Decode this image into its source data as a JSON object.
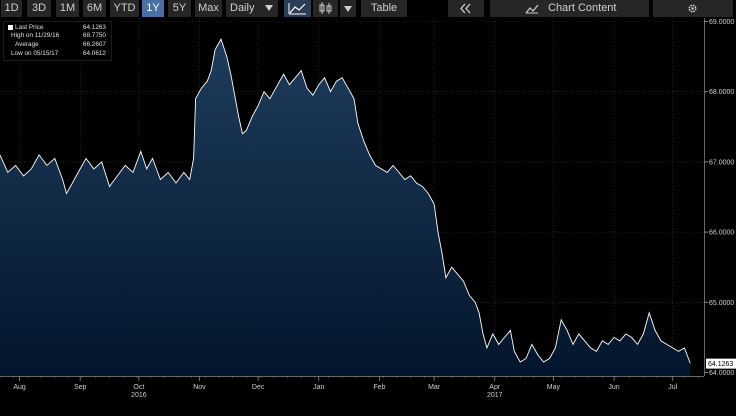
{
  "toolbar": {
    "ranges": [
      "1D",
      "3D",
      "1M",
      "6M",
      "YTD",
      "1Y",
      "5Y",
      "Max"
    ],
    "active_range": "1Y",
    "interval": "Daily",
    "table_label": "Table",
    "chart_content_label": "Chart Content"
  },
  "legend": {
    "last_label": "Last Price",
    "last_value": "64.1263",
    "high_label": "High on 11/29/16",
    "high_value": "68.7750",
    "avg_label": "Average",
    "avg_value": "66.2607",
    "low_label": "Low on 05/15/17",
    "low_value": "64.0612"
  },
  "chart_data": {
    "type": "area",
    "ylim": [
      63.95,
      69.05
    ],
    "yticks": [
      "69.0000",
      "68.0000",
      "67.0000",
      "66.0000",
      "65.0000",
      "64.0000"
    ],
    "ytick_values": [
      69,
      68,
      67,
      66,
      65,
      64
    ],
    "last_value_label": "64.1263",
    "last_value": 64.1263,
    "xticks": [
      {
        "label": "Aug",
        "day": 10
      },
      {
        "label": "Sep",
        "day": 41
      },
      {
        "label": "Oct",
        "day": 71
      },
      {
        "label": "Nov",
        "day": 102
      },
      {
        "label": "Dec",
        "day": 132
      },
      {
        "label": "Jan",
        "day": 163
      },
      {
        "label": "Feb",
        "day": 194
      },
      {
        "label": "Mar",
        "day": 222
      },
      {
        "label": "Apr",
        "day": 253
      },
      {
        "label": "May",
        "day": 283
      },
      {
        "label": "Jun",
        "day": 314
      },
      {
        "label": "Jul",
        "day": 344
      }
    ],
    "year_labels": [
      {
        "label": "2016",
        "day": 71
      },
      {
        "label": "2017",
        "day": 253
      }
    ],
    "series": [
      {
        "color": "#ffffff",
        "points": [
          [
            0,
            67.1
          ],
          [
            4,
            66.85
          ],
          [
            8,
            66.95
          ],
          [
            12,
            66.8
          ],
          [
            16,
            66.9
          ],
          [
            20,
            67.1
          ],
          [
            24,
            66.95
          ],
          [
            28,
            67.05
          ],
          [
            32,
            66.75
          ],
          [
            34,
            66.55
          ],
          [
            37,
            66.7
          ],
          [
            40,
            66.85
          ],
          [
            44,
            67.05
          ],
          [
            48,
            66.9
          ],
          [
            52,
            67.0
          ],
          [
            56,
            66.65
          ],
          [
            60,
            66.8
          ],
          [
            64,
            66.95
          ],
          [
            68,
            66.85
          ],
          [
            72,
            67.15
          ],
          [
            75,
            66.9
          ],
          [
            78,
            67.05
          ],
          [
            82,
            66.75
          ],
          [
            86,
            66.85
          ],
          [
            90,
            66.7
          ],
          [
            94,
            66.85
          ],
          [
            97,
            66.75
          ],
          [
            99,
            67.05
          ],
          [
            100,
            67.9
          ],
          [
            103,
            68.05
          ],
          [
            106,
            68.15
          ],
          [
            108,
            68.3
          ],
          [
            110,
            68.6
          ],
          [
            113,
            68.75
          ],
          [
            116,
            68.5
          ],
          [
            118,
            68.25
          ],
          [
            120,
            67.95
          ],
          [
            122,
            67.65
          ],
          [
            124,
            67.4
          ],
          [
            126,
            67.45
          ],
          [
            129,
            67.65
          ],
          [
            132,
            67.8
          ],
          [
            135,
            68.0
          ],
          [
            138,
            67.9
          ],
          [
            141,
            68.05
          ],
          [
            145,
            68.25
          ],
          [
            148,
            68.1
          ],
          [
            151,
            68.2
          ],
          [
            154,
            68.3
          ],
          [
            157,
            68.05
          ],
          [
            160,
            67.95
          ],
          [
            163,
            68.1
          ],
          [
            166,
            68.2
          ],
          [
            169,
            68.0
          ],
          [
            172,
            68.15
          ],
          [
            175,
            68.2
          ],
          [
            178,
            68.05
          ],
          [
            181,
            67.9
          ],
          [
            183,
            67.55
          ],
          [
            186,
            67.3
          ],
          [
            189,
            67.1
          ],
          [
            192,
            66.95
          ],
          [
            195,
            66.9
          ],
          [
            198,
            66.85
          ],
          [
            201,
            66.95
          ],
          [
            204,
            66.85
          ],
          [
            207,
            66.75
          ],
          [
            210,
            66.8
          ],
          [
            213,
            66.7
          ],
          [
            216,
            66.65
          ],
          [
            219,
            66.55
          ],
          [
            222,
            66.4
          ],
          [
            224,
            66.0
          ],
          [
            226,
            65.7
          ],
          [
            228,
            65.35
          ],
          [
            231,
            65.5
          ],
          [
            234,
            65.4
          ],
          [
            237,
            65.3
          ],
          [
            240,
            65.1
          ],
          [
            243,
            65.0
          ],
          [
            245,
            64.85
          ],
          [
            247,
            64.55
          ],
          [
            249,
            64.35
          ],
          [
            252,
            64.55
          ],
          [
            255,
            64.4
          ],
          [
            258,
            64.5
          ],
          [
            261,
            64.6
          ],
          [
            263,
            64.3
          ],
          [
            266,
            64.15
          ],
          [
            269,
            64.2
          ],
          [
            272,
            64.4
          ],
          [
            275,
            64.25
          ],
          [
            278,
            64.15
          ],
          [
            281,
            64.2
          ],
          [
            284,
            64.35
          ],
          [
            287,
            64.75
          ],
          [
            290,
            64.6
          ],
          [
            293,
            64.4
          ],
          [
            296,
            64.55
          ],
          [
            299,
            64.45
          ],
          [
            302,
            64.35
          ],
          [
            305,
            64.3
          ],
          [
            308,
            64.45
          ],
          [
            311,
            64.4
          ],
          [
            314,
            64.5
          ],
          [
            317,
            64.45
          ],
          [
            320,
            64.55
          ],
          [
            323,
            64.5
          ],
          [
            326,
            64.4
          ],
          [
            329,
            64.55
          ],
          [
            332,
            64.85
          ],
          [
            335,
            64.6
          ],
          [
            338,
            64.45
          ],
          [
            341,
            64.4
          ],
          [
            344,
            64.35
          ],
          [
            347,
            64.3
          ],
          [
            350,
            64.35
          ],
          [
            353,
            64.13
          ]
        ]
      }
    ]
  },
  "colors": {
    "area_top": "#1e3d5c",
    "area_bottom": "#03152c",
    "line": "#ffffff",
    "active_button": "#4a6fa5"
  }
}
